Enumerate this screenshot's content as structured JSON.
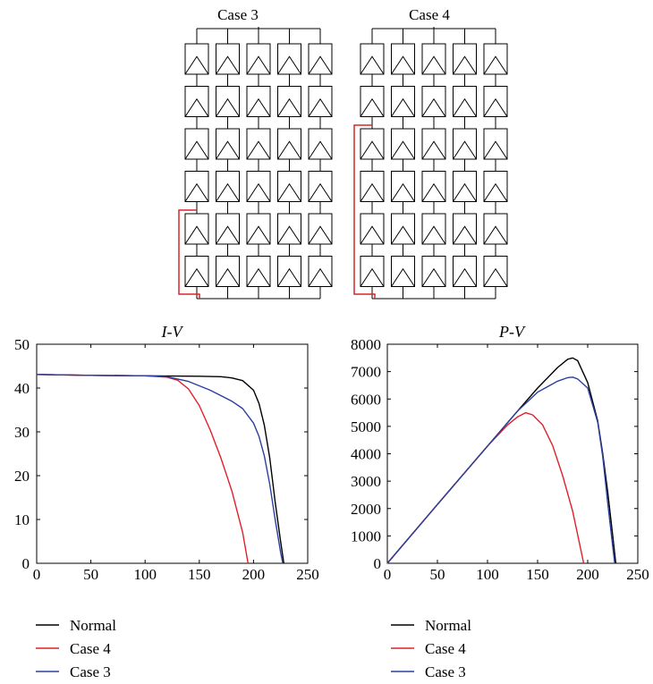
{
  "diagram": {
    "left_title": "Case 3",
    "right_title": "Case 4",
    "rows": 6,
    "columns": 5,
    "fault_color": "#d62728"
  },
  "chart_data": [
    {
      "type": "line",
      "title": "I-V",
      "xlabel": "",
      "ylabel": "",
      "xlim": [
        0,
        250
      ],
      "ylim": [
        0,
        50
      ],
      "xticks": [
        0,
        50,
        100,
        150,
        200,
        250
      ],
      "yticks": [
        0,
        10,
        20,
        30,
        40,
        50
      ],
      "grid": false,
      "legend": "below",
      "series": [
        {
          "name": "Normal",
          "color": "#000000",
          "x": [
            0,
            50,
            100,
            150,
            170,
            180,
            190,
            200,
            205,
            210,
            215,
            220,
            225,
            228
          ],
          "y": [
            43.1,
            42.9,
            42.8,
            42.7,
            42.6,
            42.3,
            41.7,
            39.5,
            36.5,
            31.5,
            24.0,
            14.0,
            5.0,
            0
          ]
        },
        {
          "name": "Case 4",
          "color": "#e0202a",
          "x": [
            0,
            50,
            100,
            120,
            130,
            140,
            150,
            160,
            170,
            180,
            190,
            195
          ],
          "y": [
            43.1,
            42.9,
            42.8,
            42.5,
            41.8,
            39.8,
            36.0,
            30.5,
            24.0,
            16.5,
            7.0,
            0
          ]
        },
        {
          "name": "Case 3",
          "color": "#2b3f9e",
          "x": [
            0,
            50,
            100,
            120,
            140,
            160,
            180,
            190,
            200,
            205,
            210,
            215,
            220,
            225,
            227
          ],
          "y": [
            43.1,
            42.9,
            42.8,
            42.6,
            41.5,
            39.5,
            37.0,
            35.3,
            32.0,
            29.0,
            24.5,
            18.0,
            10.0,
            2.5,
            0
          ]
        }
      ]
    },
    {
      "type": "line",
      "title": "P-V",
      "xlabel": "",
      "ylabel": "",
      "xlim": [
        0,
        250
      ],
      "ylim": [
        0,
        8000
      ],
      "xticks": [
        0,
        50,
        100,
        150,
        200,
        250
      ],
      "yticks": [
        0,
        1000,
        2000,
        3000,
        4000,
        5000,
        6000,
        7000,
        8000
      ],
      "grid": false,
      "legend": "below",
      "series": [
        {
          "name": "Normal",
          "color": "#000000",
          "x": [
            0,
            50,
            100,
            130,
            150,
            170,
            180,
            185,
            190,
            200,
            210,
            215,
            220,
            225,
            228
          ],
          "y": [
            0,
            2150,
            4280,
            5560,
            6400,
            7150,
            7450,
            7500,
            7400,
            6600,
            5200,
            4000,
            2600,
            1000,
            0
          ]
        },
        {
          "name": "Case 4",
          "color": "#e0202a",
          "x": [
            0,
            50,
            100,
            120,
            130,
            138,
            145,
            155,
            165,
            175,
            185,
            192,
            196
          ],
          "y": [
            0,
            2150,
            4280,
            5050,
            5350,
            5500,
            5420,
            5050,
            4300,
            3200,
            1900,
            700,
            0
          ]
        },
        {
          "name": "Case 3",
          "color": "#2b3f9e",
          "x": [
            0,
            50,
            100,
            130,
            150,
            170,
            180,
            185,
            190,
            200,
            210,
            215,
            220,
            225,
            227
          ],
          "y": [
            0,
            2150,
            4280,
            5560,
            6250,
            6650,
            6780,
            6800,
            6730,
            6400,
            5150,
            3900,
            2200,
            600,
            0
          ]
        }
      ]
    }
  ]
}
